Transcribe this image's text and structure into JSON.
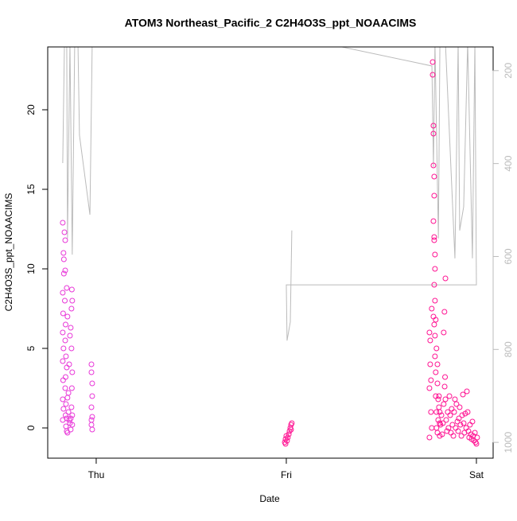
{
  "chart_data": {
    "type": "scatter",
    "title": "ATOM3 Northeast_Pacific_2 C2H4O3S_ppt_NOAACIMS",
    "xlabel": "Date",
    "ylabel": "C2H4O3S_ppt_NOAACIMS",
    "xlim": [
      -0.255,
      2.088
    ],
    "xticks": [
      {
        "value": 0,
        "label": "Thu"
      },
      {
        "value": 1,
        "label": "Fri"
      },
      {
        "value": 2,
        "label": "Sat"
      }
    ],
    "ylim": [
      -1.9,
      23.95
    ],
    "yticks": [
      0,
      5,
      10,
      15,
      20
    ],
    "y2lim": [
      1034,
      149
    ],
    "y2ticks": [
      200,
      400,
      600,
      800,
      1000
    ],
    "y2color": "#bbbbbb",
    "series": [
      {
        "color": "#e838d8",
        "x": [
          -0.176,
          -0.172,
          -0.17,
          -0.176,
          -0.174,
          -0.176,
          -0.172,
          -0.176,
          -0.174,
          -0.176,
          -0.172,
          -0.176,
          -0.17,
          -0.167,
          -0.163,
          -0.163,
          -0.165,
          -0.161,
          -0.163,
          -0.159,
          -0.161,
          -0.163,
          -0.159,
          -0.161,
          -0.159,
          -0.155,
          -0.151,
          -0.155,
          -0.151,
          -0.155,
          -0.151,
          -0.155,
          -0.146,
          -0.142,
          -0.138,
          -0.134,
          -0.13,
          -0.126,
          -0.146,
          -0.142,
          -0.138,
          -0.134,
          -0.13,
          -0.126,
          -0.128,
          -0.13,
          -0.126,
          -0.128,
          -0.126,
          -0.134,
          -0.025,
          -0.025,
          -0.021,
          -0.025,
          -0.021,
          -0.025,
          -0.021,
          -0.025,
          -0.021
        ],
        "values": [
          12.9,
          11.0,
          9.7,
          8.5,
          7.2,
          6.0,
          5.0,
          4.2,
          3.0,
          1.8,
          1.2,
          0.5,
          10.6,
          12.3,
          11.8,
          9.9,
          8.0,
          6.5,
          5.5,
          4.5,
          3.2,
          2.5,
          1.5,
          0.8,
          0.1,
          -0.2,
          -0.3,
          0.6,
          1.9,
          3.8,
          7.0,
          8.8,
          1.0,
          0.5,
          0.3,
          0.6,
          1.3,
          0.8,
          2.2,
          4.0,
          5.8,
          6.3,
          7.5,
          8.0,
          8.7,
          5.0,
          3.5,
          2.5,
          0.2,
          -0.1,
          4.0,
          3.5,
          2.0,
          1.3,
          0.7,
          0.2,
          -0.1,
          0.5,
          2.8
        ]
      },
      {
        "color": "#ff1493",
        "x": [
          0.992,
          0.996,
          1.0,
          1.004,
          1.008,
          1.013,
          1.017,
          1.021,
          1.025,
          1.029,
          1.025,
          0.996,
          1.753,
          1.753,
          1.757,
          1.757,
          1.753,
          1.761,
          1.761,
          1.765,
          1.765,
          1.77,
          1.77,
          1.774,
          1.774,
          1.774,
          1.778,
          1.778,
          1.774,
          1.778,
          1.778,
          1.782,
          1.782,
          1.778,
          1.782,
          1.774,
          1.778,
          1.782,
          1.782,
          1.786,
          1.786,
          1.79,
          1.79,
          1.795,
          1.799,
          1.803,
          1.807,
          1.807,
          1.786,
          1.79,
          1.795,
          1.795,
          1.799,
          1.803,
          1.807,
          1.811,
          1.816,
          1.82,
          1.824,
          1.828,
          1.828,
          1.832,
          1.837,
          1.837,
          1.841,
          1.845,
          1.849,
          1.853,
          1.858,
          1.862,
          1.866,
          1.87,
          1.874,
          1.879,
          1.883,
          1.887,
          1.891,
          1.895,
          1.9,
          1.904,
          1.908,
          1.912,
          1.916,
          1.921,
          1.925,
          1.929,
          1.933,
          1.937,
          1.941,
          1.946,
          1.95,
          1.954,
          1.958,
          1.962,
          1.966,
          1.971,
          1.975,
          1.979,
          1.983,
          1.987,
          1.992,
          1.996,
          2.0,
          2.004,
          1.835,
          1.833
        ],
        "values": [
          -0.9,
          -0.7,
          -0.5,
          -0.8,
          -0.6,
          -0.4,
          -0.2,
          0.0,
          0.2,
          0.3,
          -0.1,
          -1.0,
          -0.6,
          2.5,
          4.0,
          5.5,
          6.0,
          3.0,
          1.0,
          0.0,
          7.5,
          23.0,
          22.2,
          19.0,
          18.5,
          16.5,
          15.8,
          14.6,
          13.0,
          12.0,
          11.8,
          10.9,
          10.0,
          9.0,
          8.0,
          7.0,
          6.5,
          5.8,
          4.5,
          3.5,
          2.0,
          1.0,
          0.0,
          -0.3,
          0.5,
          1.3,
          0.3,
          -0.5,
          6.8,
          5.0,
          4.0,
          2.8,
          1.8,
          2.0,
          1.0,
          0.2,
          0.8,
          -0.4,
          0.3,
          1.5,
          6.0,
          7.3,
          9.4,
          1.8,
          0.5,
          -0.2,
          1.0,
          0.0,
          2.0,
          0.8,
          -0.3,
          1.2,
          0.2,
          -0.5,
          1.0,
          1.8,
          0.0,
          1.5,
          0.4,
          -0.2,
          0.6,
          1.3,
          0.2,
          -0.5,
          0.8,
          2.1,
          0.3,
          -0.3,
          0.9,
          0.0,
          2.3,
          1.0,
          -0.2,
          -0.6,
          0.2,
          -0.4,
          -0.7,
          0.4,
          -0.5,
          -0.8,
          -0.3,
          -0.9,
          -1.0,
          -0.6,
          3.2,
          2.6
        ]
      },
      {
        "type": "line",
        "axis": "y2",
        "color": "#bbbbbb",
        "x": [
          -0.176,
          -0.167,
          -0.155,
          -0.151,
          -0.138,
          -0.126,
          -0.113,
          -0.096,
          -0.088,
          -0.033,
          -0.021,
          0.3,
          1.188,
          1.766,
          1.774,
          1.782,
          1.8,
          1.808,
          1.837,
          1.887,
          1.904,
          1.912,
          1.933,
          1.954,
          1.979,
          1.992,
          2.0,
          1.0,
          1.004,
          1.021,
          1.029
        ],
        "values": [
          399,
          140,
          140,
          561,
          140,
          596,
          140,
          140,
          339,
          510,
          140,
          140,
          140,
          190,
          407,
          140,
          561,
          140,
          140,
          604,
          140,
          544,
          493,
          140,
          604,
          140,
          661,
          661,
          781,
          741,
          544
        ]
      }
    ]
  }
}
